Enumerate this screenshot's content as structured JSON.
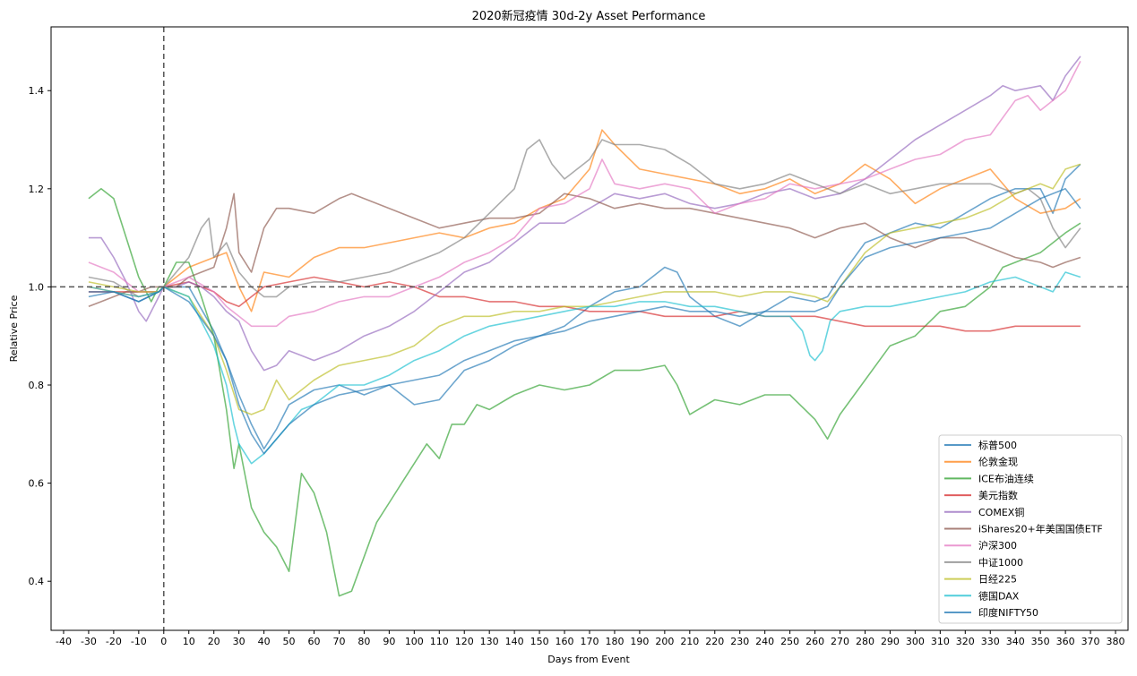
{
  "chart_data": {
    "type": "line",
    "title": "2020新冠疫情 30d-2y Asset Performance",
    "xlabel": "Days from Event",
    "ylabel": "Relative Price",
    "xlim": [
      -45,
      385
    ],
    "ylim": [
      0.3,
      1.53
    ],
    "xticks": [
      -40,
      -30,
      -20,
      -10,
      0,
      10,
      20,
      30,
      40,
      50,
      60,
      70,
      80,
      90,
      100,
      110,
      120,
      130,
      140,
      150,
      160,
      170,
      180,
      190,
      200,
      210,
      220,
      230,
      240,
      250,
      260,
      270,
      280,
      290,
      300,
      310,
      320,
      330,
      340,
      350,
      360,
      370,
      380
    ],
    "yticks": [
      0.4,
      0.6,
      0.8,
      1.0,
      1.2,
      1.4
    ],
    "reference_lines": {
      "vertical_x": 0,
      "horizontal_y": 1.0
    },
    "grid": false,
    "legend_position": "lower-right",
    "series": [
      {
        "name": "标普500",
        "color": "#1f77b4",
        "x": [
          -30,
          -20,
          -10,
          -2,
          0,
          10,
          20,
          25,
          30,
          35,
          40,
          45,
          50,
          60,
          70,
          80,
          90,
          100,
          110,
          120,
          130,
          140,
          150,
          160,
          170,
          180,
          190,
          200,
          205,
          210,
          220,
          230,
          240,
          250,
          260,
          265,
          270,
          280,
          290,
          300,
          310,
          320,
          330,
          340,
          350,
          355,
          360,
          366
        ],
        "values": [
          0.98,
          0.99,
          0.97,
          0.99,
          1.0,
          1.0,
          0.91,
          0.85,
          0.78,
          0.72,
          0.67,
          0.71,
          0.76,
          0.79,
          0.8,
          0.78,
          0.8,
          0.76,
          0.77,
          0.83,
          0.85,
          0.88,
          0.9,
          0.92,
          0.96,
          0.99,
          1.0,
          1.04,
          1.03,
          0.98,
          0.94,
          0.92,
          0.95,
          0.98,
          0.97,
          0.98,
          1.02,
          1.09,
          1.11,
          1.13,
          1.12,
          1.15,
          1.18,
          1.2,
          1.2,
          1.15,
          1.22,
          1.25
        ]
      },
      {
        "name": "伦敦金现",
        "color": "#ff7f0e",
        "x": [
          -30,
          -20,
          -10,
          -2,
          0,
          10,
          20,
          25,
          30,
          35,
          40,
          50,
          60,
          70,
          80,
          90,
          100,
          110,
          120,
          130,
          140,
          150,
          160,
          170,
          175,
          180,
          190,
          200,
          210,
          220,
          230,
          240,
          250,
          260,
          270,
          280,
          290,
          300,
          310,
          320,
          330,
          340,
          350,
          360,
          366
        ],
        "values": [
          1.0,
          0.99,
          0.98,
          0.99,
          1.0,
          1.04,
          1.06,
          1.07,
          1.0,
          0.95,
          1.03,
          1.02,
          1.06,
          1.08,
          1.08,
          1.09,
          1.1,
          1.11,
          1.1,
          1.12,
          1.13,
          1.16,
          1.18,
          1.24,
          1.32,
          1.29,
          1.24,
          1.23,
          1.22,
          1.21,
          1.19,
          1.2,
          1.22,
          1.19,
          1.21,
          1.25,
          1.22,
          1.17,
          1.2,
          1.22,
          1.24,
          1.18,
          1.15,
          1.16,
          1.18
        ]
      },
      {
        "name": "ICE布油连续",
        "color": "#2ca02c",
        "x": [
          -30,
          -25,
          -20,
          -15,
          -10,
          -5,
          -2,
          0,
          5,
          10,
          15,
          20,
          25,
          28,
          30,
          35,
          40,
          45,
          50,
          55,
          60,
          65,
          70,
          75,
          80,
          85,
          90,
          95,
          100,
          105,
          110,
          115,
          120,
          125,
          130,
          140,
          150,
          160,
          170,
          180,
          190,
          200,
          205,
          210,
          220,
          230,
          240,
          250,
          260,
          265,
          270,
          280,
          290,
          300,
          310,
          320,
          330,
          335,
          340,
          350,
          360,
          366
        ],
        "values": [
          1.18,
          1.2,
          1.18,
          1.1,
          1.02,
          0.97,
          1.0,
          1.0,
          1.05,
          1.05,
          0.98,
          0.9,
          0.75,
          0.63,
          0.68,
          0.55,
          0.5,
          0.47,
          0.42,
          0.62,
          0.58,
          0.5,
          0.37,
          0.38,
          0.45,
          0.52,
          0.56,
          0.6,
          0.64,
          0.68,
          0.65,
          0.72,
          0.72,
          0.76,
          0.75,
          0.78,
          0.8,
          0.79,
          0.8,
          0.83,
          0.83,
          0.84,
          0.8,
          0.74,
          0.77,
          0.76,
          0.78,
          0.78,
          0.73,
          0.69,
          0.74,
          0.81,
          0.88,
          0.9,
          0.95,
          0.96,
          1.0,
          1.04,
          1.05,
          1.07,
          1.11,
          1.13
        ]
      },
      {
        "name": "美元指数",
        "color": "#d62728",
        "x": [
          -30,
          -20,
          -10,
          -2,
          0,
          10,
          15,
          20,
          25,
          30,
          35,
          40,
          50,
          60,
          70,
          80,
          90,
          100,
          110,
          120,
          130,
          140,
          150,
          160,
          170,
          180,
          190,
          200,
          210,
          220,
          230,
          240,
          250,
          260,
          270,
          280,
          290,
          300,
          310,
          320,
          330,
          340,
          350,
          360,
          366
        ],
        "values": [
          0.99,
          0.99,
          0.99,
          0.99,
          1.0,
          1.01,
          1.0,
          0.99,
          0.97,
          0.96,
          0.98,
          1.0,
          1.01,
          1.02,
          1.01,
          1.0,
          1.01,
          1.0,
          0.98,
          0.98,
          0.97,
          0.97,
          0.96,
          0.96,
          0.95,
          0.95,
          0.95,
          0.94,
          0.94,
          0.94,
          0.95,
          0.94,
          0.94,
          0.94,
          0.93,
          0.92,
          0.92,
          0.92,
          0.92,
          0.91,
          0.91,
          0.92,
          0.92,
          0.92,
          0.92
        ]
      },
      {
        "name": "COMEX铜",
        "color": "#9467bd",
        "x": [
          -30,
          -25,
          -20,
          -15,
          -10,
          -7,
          -2,
          0,
          5,
          10,
          15,
          20,
          25,
          30,
          35,
          40,
          45,
          50,
          55,
          60,
          70,
          80,
          90,
          100,
          110,
          120,
          130,
          140,
          150,
          160,
          170,
          180,
          190,
          200,
          210,
          220,
          230,
          240,
          250,
          260,
          270,
          280,
          290,
          300,
          310,
          320,
          330,
          335,
          340,
          350,
          355,
          360,
          366
        ],
        "values": [
          1.1,
          1.1,
          1.06,
          1.01,
          0.95,
          0.93,
          0.98,
          1.0,
          1.0,
          1.01,
          1.0,
          0.98,
          0.95,
          0.93,
          0.87,
          0.83,
          0.84,
          0.87,
          0.86,
          0.85,
          0.87,
          0.9,
          0.92,
          0.95,
          0.99,
          1.03,
          1.05,
          1.09,
          1.13,
          1.13,
          1.16,
          1.19,
          1.18,
          1.19,
          1.17,
          1.16,
          1.17,
          1.19,
          1.2,
          1.18,
          1.19,
          1.22,
          1.26,
          1.3,
          1.33,
          1.36,
          1.39,
          1.41,
          1.4,
          1.41,
          1.38,
          1.43,
          1.47
        ]
      },
      {
        "name": "iShares20+年美国国债ETF",
        "color": "#8c564b",
        "x": [
          -30,
          -25,
          -20,
          -15,
          -10,
          -5,
          -2,
          0,
          5,
          10,
          15,
          20,
          25,
          28,
          30,
          35,
          40,
          45,
          50,
          60,
          70,
          75,
          80,
          90,
          100,
          110,
          120,
          130,
          140,
          150,
          160,
          170,
          180,
          190,
          200,
          210,
          220,
          230,
          240,
          250,
          260,
          270,
          280,
          290,
          300,
          310,
          320,
          330,
          340,
          350,
          355,
          360,
          366
        ],
        "values": [
          0.96,
          0.97,
          0.98,
          0.99,
          0.99,
          1.0,
          1.0,
          1.0,
          1.0,
          1.02,
          1.03,
          1.04,
          1.12,
          1.19,
          1.07,
          1.03,
          1.12,
          1.16,
          1.16,
          1.15,
          1.18,
          1.19,
          1.18,
          1.16,
          1.14,
          1.12,
          1.13,
          1.14,
          1.14,
          1.15,
          1.19,
          1.18,
          1.16,
          1.17,
          1.16,
          1.16,
          1.15,
          1.14,
          1.13,
          1.12,
          1.1,
          1.12,
          1.13,
          1.1,
          1.08,
          1.1,
          1.1,
          1.08,
          1.06,
          1.05,
          1.04,
          1.05,
          1.06
        ]
      },
      {
        "name": "沪深300",
        "color": "#e377c2",
        "x": [
          -30,
          -20,
          -10,
          -2,
          0,
          10,
          20,
          25,
          30,
          35,
          40,
          45,
          50,
          60,
          70,
          80,
          90,
          100,
          110,
          120,
          130,
          140,
          150,
          160,
          170,
          175,
          180,
          190,
          200,
          210,
          220,
          230,
          240,
          250,
          260,
          270,
          280,
          290,
          300,
          310,
          320,
          330,
          340,
          345,
          350,
          355,
          360,
          366
        ],
        "values": [
          1.05,
          1.03,
          0.99,
          0.99,
          1.0,
          1.02,
          0.99,
          0.96,
          0.94,
          0.92,
          0.92,
          0.92,
          0.94,
          0.95,
          0.97,
          0.98,
          0.98,
          1.0,
          1.02,
          1.05,
          1.07,
          1.1,
          1.16,
          1.17,
          1.2,
          1.26,
          1.21,
          1.2,
          1.21,
          1.2,
          1.15,
          1.17,
          1.18,
          1.21,
          1.2,
          1.21,
          1.22,
          1.24,
          1.26,
          1.27,
          1.3,
          1.31,
          1.38,
          1.39,
          1.36,
          1.38,
          1.4,
          1.46
        ]
      },
      {
        "name": "中证1000",
        "color": "#7f7f7f",
        "x": [
          -30,
          -20,
          -10,
          -2,
          0,
          10,
          15,
          18,
          20,
          25,
          30,
          35,
          40,
          45,
          50,
          60,
          70,
          80,
          90,
          100,
          110,
          120,
          130,
          140,
          145,
          150,
          155,
          160,
          170,
          175,
          180,
          190,
          200,
          210,
          220,
          230,
          240,
          250,
          260,
          270,
          280,
          290,
          300,
          310,
          320,
          330,
          340,
          345,
          350,
          355,
          360,
          366
        ],
        "values": [
          1.02,
          1.01,
          0.98,
          0.99,
          1.0,
          1.06,
          1.12,
          1.14,
          1.06,
          1.09,
          1.03,
          1.0,
          0.98,
          0.98,
          1.0,
          1.01,
          1.01,
          1.02,
          1.03,
          1.05,
          1.07,
          1.1,
          1.15,
          1.2,
          1.28,
          1.3,
          1.25,
          1.22,
          1.26,
          1.3,
          1.29,
          1.29,
          1.28,
          1.25,
          1.21,
          1.2,
          1.21,
          1.23,
          1.21,
          1.19,
          1.21,
          1.19,
          1.2,
          1.21,
          1.21,
          1.21,
          1.19,
          1.2,
          1.18,
          1.12,
          1.08,
          1.12
        ]
      },
      {
        "name": "日经225",
        "color": "#bcbd22",
        "x": [
          -30,
          -20,
          -10,
          -2,
          0,
          10,
          20,
          25,
          30,
          35,
          40,
          45,
          50,
          60,
          70,
          80,
          90,
          100,
          110,
          120,
          130,
          140,
          150,
          160,
          170,
          180,
          190,
          200,
          210,
          220,
          230,
          240,
          250,
          260,
          265,
          270,
          280,
          290,
          300,
          310,
          320,
          330,
          340,
          350,
          355,
          360,
          366
        ],
        "values": [
          1.01,
          1.0,
          0.99,
          0.99,
          1.0,
          0.98,
          0.9,
          0.83,
          0.75,
          0.74,
          0.75,
          0.81,
          0.77,
          0.81,
          0.84,
          0.85,
          0.86,
          0.88,
          0.92,
          0.94,
          0.94,
          0.95,
          0.95,
          0.96,
          0.96,
          0.97,
          0.98,
          0.99,
          0.99,
          0.99,
          0.98,
          0.99,
          0.99,
          0.98,
          0.97,
          1.0,
          1.07,
          1.11,
          1.12,
          1.13,
          1.14,
          1.16,
          1.19,
          1.21,
          1.2,
          1.24,
          1.25
        ]
      },
      {
        "name": "德国DAX",
        "color": "#17becf",
        "x": [
          -30,
          -20,
          -10,
          -2,
          0,
          10,
          15,
          20,
          25,
          28,
          30,
          35,
          40,
          45,
          50,
          55,
          60,
          70,
          80,
          90,
          100,
          110,
          120,
          130,
          140,
          150,
          160,
          170,
          180,
          190,
          200,
          210,
          220,
          230,
          240,
          250,
          255,
          258,
          260,
          263,
          266,
          270,
          280,
          290,
          300,
          310,
          320,
          330,
          340,
          350,
          355,
          360,
          366
        ],
        "values": [
          1.0,
          0.99,
          0.98,
          0.99,
          1.0,
          0.98,
          0.93,
          0.88,
          0.8,
          0.72,
          0.68,
          0.64,
          0.66,
          0.69,
          0.72,
          0.75,
          0.76,
          0.8,
          0.8,
          0.82,
          0.85,
          0.87,
          0.9,
          0.92,
          0.93,
          0.94,
          0.95,
          0.96,
          0.96,
          0.97,
          0.97,
          0.96,
          0.96,
          0.95,
          0.94,
          0.94,
          0.91,
          0.86,
          0.85,
          0.87,
          0.93,
          0.95,
          0.96,
          0.96,
          0.97,
          0.98,
          0.99,
          1.01,
          1.02,
          1.0,
          0.99,
          1.03,
          1.02
        ]
      },
      {
        "name": "印度NIFTY50",
        "color": "#1f77b4",
        "x": [
          -30,
          -20,
          -10,
          -2,
          0,
          10,
          20,
          25,
          30,
          35,
          40,
          45,
          50,
          60,
          70,
          80,
          90,
          100,
          110,
          120,
          130,
          140,
          150,
          160,
          170,
          180,
          190,
          200,
          210,
          220,
          230,
          240,
          250,
          260,
          265,
          270,
          280,
          290,
          300,
          310,
          320,
          330,
          340,
          350,
          355,
          360,
          366
        ],
        "values": [
          0.99,
          0.99,
          0.97,
          0.99,
          1.0,
          0.97,
          0.9,
          0.85,
          0.76,
          0.7,
          0.66,
          0.69,
          0.72,
          0.76,
          0.78,
          0.79,
          0.8,
          0.81,
          0.82,
          0.85,
          0.87,
          0.89,
          0.9,
          0.91,
          0.93,
          0.94,
          0.95,
          0.96,
          0.95,
          0.95,
          0.94,
          0.95,
          0.95,
          0.95,
          0.96,
          1.0,
          1.06,
          1.08,
          1.09,
          1.1,
          1.11,
          1.12,
          1.15,
          1.18,
          1.19,
          1.2,
          1.16
        ]
      }
    ]
  }
}
